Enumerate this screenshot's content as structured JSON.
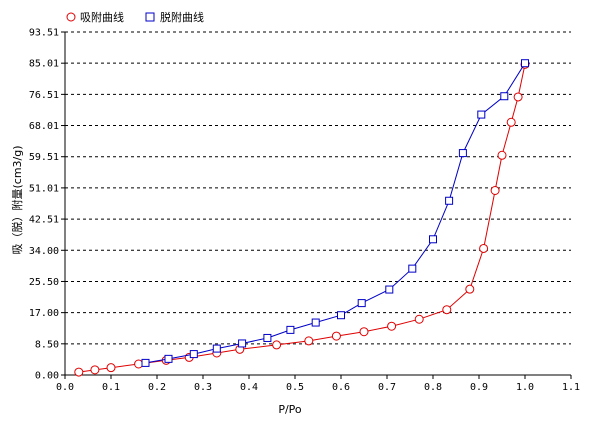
{
  "chart_data": {
    "type": "line",
    "title": "",
    "xlabel": "P/Po",
    "ylabel": "吸（脱）附量(cm3/g)",
    "xlim": [
      0,
      1.1
    ],
    "ylim": [
      0,
      93.51
    ],
    "x_ticks": [
      "0.0",
      "0.1",
      "0.2",
      "0.3",
      "0.4",
      "0.5",
      "0.6",
      "0.7",
      "0.8",
      "0.9",
      "1.0",
      "1.1"
    ],
    "y_ticks": [
      "0.00",
      "8.50",
      "17.00",
      "25.50",
      "34.00",
      "42.51",
      "51.01",
      "59.51",
      "68.01",
      "76.51",
      "85.01",
      "93.51"
    ],
    "grid": "horizontal dashed",
    "legend_position": "top-left",
    "series": [
      {
        "name": "吸附曲线",
        "color": "#e00000",
        "marker": "circle",
        "x": [
          0.03,
          0.065,
          0.1,
          0.16,
          0.22,
          0.27,
          0.33,
          0.38,
          0.46,
          0.53,
          0.59,
          0.65,
          0.71,
          0.77,
          0.83,
          0.88,
          0.91,
          0.935,
          0.95,
          0.97,
          0.985,
          1.0
        ],
        "y": [
          0.8,
          1.4,
          2.0,
          3.0,
          4.0,
          4.8,
          6.0,
          7.0,
          8.2,
          9.3,
          10.6,
          11.8,
          13.3,
          15.2,
          17.8,
          23.4,
          34.5,
          50.3,
          59.9,
          68.9,
          75.8,
          84.7
        ]
      },
      {
        "name": "脱附曲线",
        "color": "#0000c8",
        "marker": "square",
        "x": [
          1.0,
          0.955,
          0.905,
          0.865,
          0.835,
          0.8,
          0.755,
          0.705,
          0.645,
          0.6,
          0.545,
          0.49,
          0.44,
          0.385,
          0.33,
          0.28,
          0.225,
          0.175
        ],
        "y": [
          85.0,
          76.0,
          71.0,
          60.5,
          47.5,
          37.0,
          29.0,
          23.3,
          19.6,
          16.3,
          14.3,
          12.3,
          10.1,
          8.6,
          7.2,
          5.7,
          4.4,
          3.3
        ]
      }
    ]
  }
}
